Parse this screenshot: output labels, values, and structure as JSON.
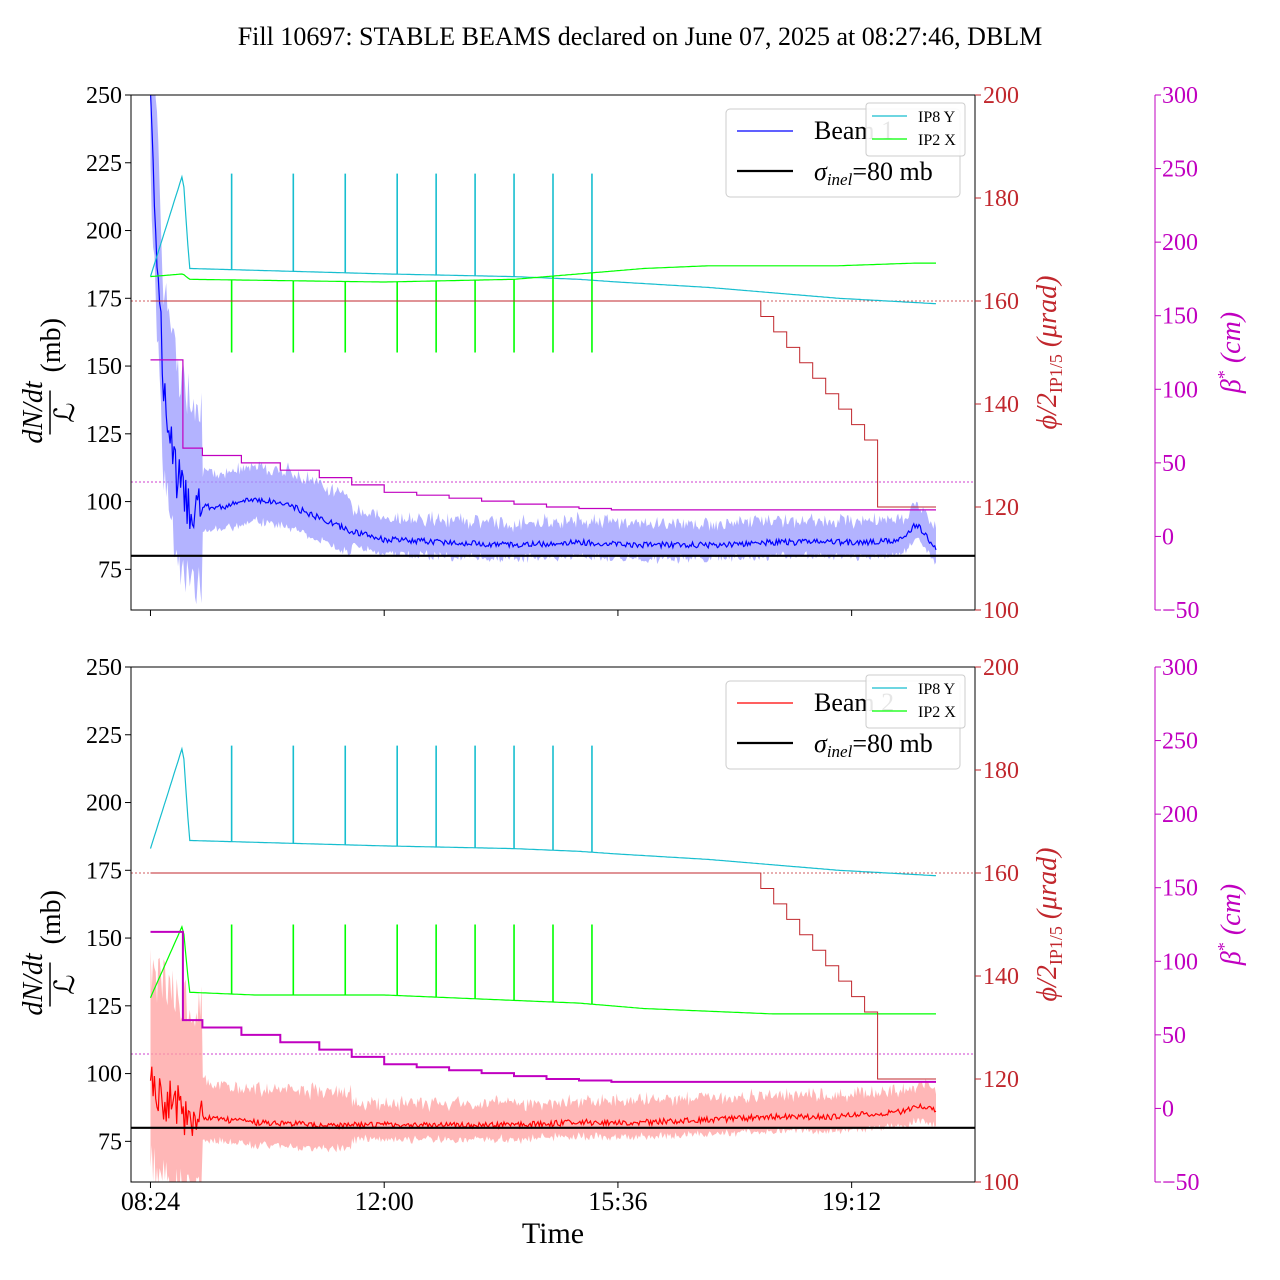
{
  "figure": {
    "title": "Fill 10697: STABLE BEAMS declared on June 07, 2025 at 08:27:46, DBLM",
    "xlabel": "Time",
    "xticks": [
      "08:24",
      "12:00",
      "15:36",
      "19:12"
    ]
  },
  "colors": {
    "beam1": "#0000ff",
    "beam1_band": "#9999ff",
    "beam2": "#ff0000",
    "beam2_band": "#ff9f9f",
    "ip8y": "#17becf",
    "ip2x": "#00ff00",
    "crossing": "#c1272d",
    "beta": "#c000c0",
    "sigma": "#000000"
  },
  "axes": {
    "left": {
      "label_num": "dN/dt",
      "label_den": "ℒ",
      "label_unit": "(mb)",
      "ylim": [
        60,
        250
      ],
      "ticks": [
        "75",
        "100",
        "125",
        "150",
        "175",
        "200",
        "225",
        "250"
      ]
    },
    "right1": {
      "label_phi": "ϕ/2",
      "label_sub": "IP1/5",
      "label_unit": "(μrad)",
      "ylim": [
        100,
        200
      ],
      "ticks": [
        "100",
        "120",
        "140",
        "160",
        "180",
        "200"
      ]
    },
    "right2": {
      "label_beta": "β",
      "label_star": "*",
      "label_unit": "(cm)",
      "ylim": [
        -50,
        300
      ],
      "ticks": [
        "−50",
        "0",
        "50",
        "100",
        "150",
        "200",
        "250",
        "300"
      ]
    }
  },
  "legend_main": {
    "beam1": "Beam 1",
    "beam2": "Beam 2",
    "sigma_sym": "σ",
    "sigma_sub": "inel",
    "sigma_text": "=80 mb"
  },
  "legend_small": {
    "ip8y": "IP8 Y",
    "ip2x": "IP2 X"
  },
  "chart_data": [
    {
      "type": "line",
      "panel": "top",
      "x_unit": "hours since 00:00 (tick labels show HH:MM)",
      "xlim": [
        8.1,
        21.1
      ],
      "series": [
        {
          "name": "Beam 1",
          "axis": "left",
          "x": [
            8.4,
            8.6,
            8.8,
            9.0,
            9.5,
            10.0,
            10.5,
            11.0,
            11.5,
            12.0,
            13.0,
            14.0,
            15.0,
            16.0,
            17.0,
            18.0,
            19.0,
            19.5,
            20.0,
            20.2,
            20.5
          ],
          "y": [
            250,
            140,
            110,
            98,
            98,
            101,
            99,
            94,
            89,
            86,
            85,
            84,
            85,
            84,
            84,
            85,
            85,
            85,
            86,
            92,
            82
          ]
        },
        {
          "name": "σinel=80 mb",
          "axis": "left",
          "x": [
            8.1,
            21.1
          ],
          "y": [
            80,
            80
          ]
        },
        {
          "name": "IP8 Y",
          "axis": "left",
          "x": [
            8.4,
            8.9,
            9.0,
            12.0,
            14.0,
            15.0,
            15.6,
            17.0,
            18.0,
            19.0,
            20.5
          ],
          "y": [
            183,
            221,
            186,
            184,
            183,
            182,
            181,
            179,
            177,
            175,
            173
          ]
        },
        {
          "name": "IP2 X",
          "axis": "left",
          "x": [
            8.4,
            8.9,
            9.0,
            12.0,
            14.0,
            15.0,
            16.0,
            17.0,
            18.0,
            19.0,
            20.2,
            20.5
          ],
          "y": [
            183,
            184,
            182,
            181,
            182,
            184,
            186,
            187,
            187,
            187,
            188,
            188
          ]
        },
        {
          "name": "crossing angle",
          "axis": "right1",
          "x": [
            8.4,
            17.6,
            17.8,
            18.0,
            18.2,
            18.4,
            18.6,
            18.8,
            19.0,
            19.2,
            19.4,
            19.6,
            20.5
          ],
          "y": [
            160,
            160,
            157,
            154,
            151,
            148,
            145,
            142,
            139,
            136,
            133,
            120,
            120
          ]
        },
        {
          "name": "beta*",
          "axis": "right2",
          "x": [
            8.4,
            8.8,
            8.9,
            9.2,
            9.8,
            10.4,
            11.0,
            11.5,
            12.0,
            12.5,
            13.0,
            13.5,
            14.0,
            14.5,
            15.0,
            15.5,
            20.5
          ],
          "y": [
            120,
            120,
            60,
            55,
            50,
            45,
            40,
            35,
            30,
            28,
            26,
            24,
            22,
            20,
            19,
            18,
            18
          ]
        }
      ]
    },
    {
      "type": "line",
      "panel": "bottom",
      "x_unit": "hours since 00:00 (tick labels show HH:MM)",
      "xlim": [
        8.1,
        21.1
      ],
      "series": [
        {
          "name": "Beam 2",
          "axis": "left",
          "x": [
            8.4,
            8.6,
            8.8,
            9.0,
            9.5,
            10.0,
            11.0,
            12.0,
            13.0,
            14.0,
            15.0,
            16.0,
            17.0,
            18.0,
            19.0,
            19.3,
            19.5,
            20.0,
            20.3,
            20.5
          ],
          "y": [
            96,
            92,
            88,
            85,
            83,
            82,
            81,
            81,
            81,
            81,
            82,
            82,
            83,
            84,
            84,
            85,
            85,
            86,
            88,
            86
          ]
        },
        {
          "name": "σinel=80 mb",
          "axis": "left",
          "x": [
            8.1,
            21.1
          ],
          "y": [
            80,
            80
          ]
        },
        {
          "name": "IP8 Y",
          "axis": "left",
          "x": [
            8.4,
            8.9,
            9.0,
            12.0,
            14.0,
            15.0,
            15.6,
            17.0,
            18.0,
            19.0,
            20.5
          ],
          "y": [
            183,
            221,
            186,
            184,
            183,
            182,
            181,
            179,
            177,
            175,
            173
          ]
        },
        {
          "name": "IP2 X",
          "axis": "left",
          "x": [
            8.4,
            8.9,
            9.0,
            10.0,
            12.0,
            13.0,
            14.0,
            15.0,
            16.0,
            17.0,
            18.0,
            19.0,
            20.0,
            20.5
          ],
          "y": [
            128,
            155,
            130,
            129,
            129,
            128,
            127,
            126,
            124,
            123,
            122,
            122,
            122,
            122
          ]
        },
        {
          "name": "crossing angle",
          "axis": "right1",
          "x": [
            8.4,
            17.6,
            17.8,
            18.0,
            18.2,
            18.4,
            18.6,
            18.8,
            19.0,
            19.2,
            19.4,
            19.6,
            20.5
          ],
          "y": [
            160,
            160,
            157,
            154,
            151,
            148,
            145,
            142,
            139,
            136,
            133,
            120,
            120
          ]
        },
        {
          "name": "beta*",
          "axis": "right2",
          "x": [
            8.4,
            8.8,
            8.9,
            9.2,
            9.8,
            10.4,
            11.0,
            11.5,
            12.0,
            12.5,
            13.0,
            13.5,
            14.0,
            14.5,
            15.0,
            15.5,
            20.5
          ],
          "y": [
            120,
            120,
            60,
            55,
            50,
            45,
            40,
            35,
            30,
            28,
            26,
            24,
            22,
            20,
            19,
            18,
            18
          ]
        }
      ]
    }
  ]
}
